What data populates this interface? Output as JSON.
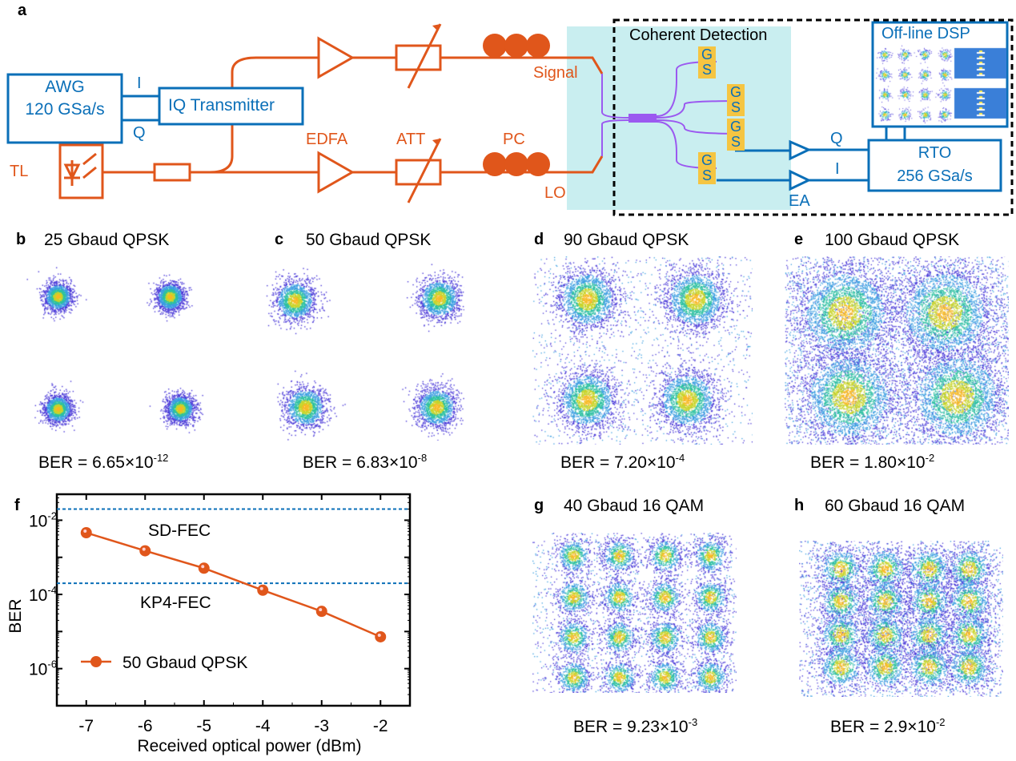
{
  "panel_a": {
    "label": "a",
    "awg": [
      "AWG",
      "120 GSa/s"
    ],
    "iq_tx": "IQ Transmitter",
    "i": "I",
    "q": "Q",
    "tl": "TL",
    "edfa": "EDFA",
    "att": "ATT",
    "pc": "PC",
    "signal": "Signal",
    "lo": "LO",
    "coherent": "Coherent Detection",
    "g": "G",
    "s": "S",
    "dsp": "Off-line DSP",
    "rto": [
      "RTO",
      "256 GSa/s"
    ],
    "q2": "Q",
    "i2": "I",
    "ea": "EA"
  },
  "panels": [
    {
      "label": "b",
      "title": "25 Gbaud QPSK",
      "ber_prefix": "BER = 6.65×10",
      "ber_exp": "-12"
    },
    {
      "label": "c",
      "title": "50 Gbaud QPSK",
      "ber_prefix": "BER = 6.83×10",
      "ber_exp": "-8"
    },
    {
      "label": "d",
      "title": "90 Gbaud QPSK",
      "ber_prefix": "BER = 7.20×10",
      "ber_exp": "-4"
    },
    {
      "label": "e",
      "title": "100 Gbaud QPSK",
      "ber_prefix": "BER = 1.80×10",
      "ber_exp": "-2"
    },
    {
      "label": "g",
      "title": "40 Gbaud 16 QAM",
      "ber_prefix": "BER = 9.23×10",
      "ber_exp": "-3"
    },
    {
      "label": "h",
      "title": "60 Gbaud 16 QAM",
      "ber_prefix": "BER = 2.9×10",
      "ber_exp": "-2"
    }
  ],
  "colors": {
    "orange": "#e0561b",
    "blue": "#0a6fb8",
    "cyan": "#c9eef0",
    "purple": "#9b59f0",
    "pad": "#f5c542"
  },
  "chart_data": {
    "type": "line",
    "label": "f",
    "xlabel": "Received optical power (dBm)",
    "ylabel": "BER",
    "yscale": "log",
    "xlim": [
      -7.5,
      -1.5
    ],
    "ylim_log10": [
      -7,
      -1.3
    ],
    "xticks": [
      "-7",
      "-6",
      "-5",
      "-4",
      "-3",
      "-2"
    ],
    "yticks": [
      {
        "base": "10",
        "exp": "-2"
      },
      {
        "base": "10",
        "exp": "-4"
      },
      {
        "base": "10",
        "exp": "-6"
      }
    ],
    "series": [
      {
        "name": "50 Gbaud QPSK",
        "x": [
          -7,
          -6,
          -5,
          -4,
          -3,
          -2
        ],
        "y": [
          0.0046,
          0.0015,
          0.00051,
          0.00013,
          3.5e-05,
          7.2e-06
        ]
      }
    ],
    "thresholds": [
      {
        "name": "SD-FEC",
        "value": 0.02
      },
      {
        "name": "KP4-FEC",
        "value": 0.0002
      }
    ],
    "legend": "bottom-left"
  }
}
